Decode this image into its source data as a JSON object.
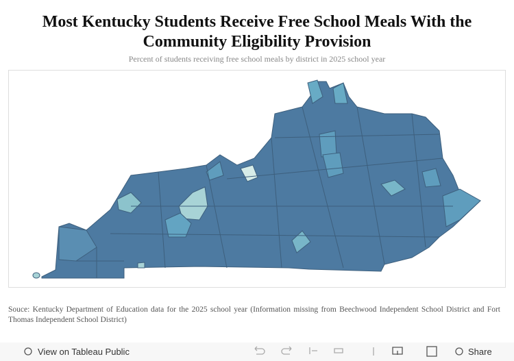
{
  "header": {
    "title": "Most Kentucky Students Receive Free School Meals With the Community Eligibility Provision",
    "subtitle": "Percent of students receiving free school meals by district in 2025 school year"
  },
  "footer": {
    "source": "Souce: Kentucky Department of Education data for the 2025 school year (Information missing from Beechwood Independent School District and Fort Thomas Independent School District)"
  },
  "toolbar": {
    "view": "View on Tableau Public",
    "share": "Share"
  }
}
